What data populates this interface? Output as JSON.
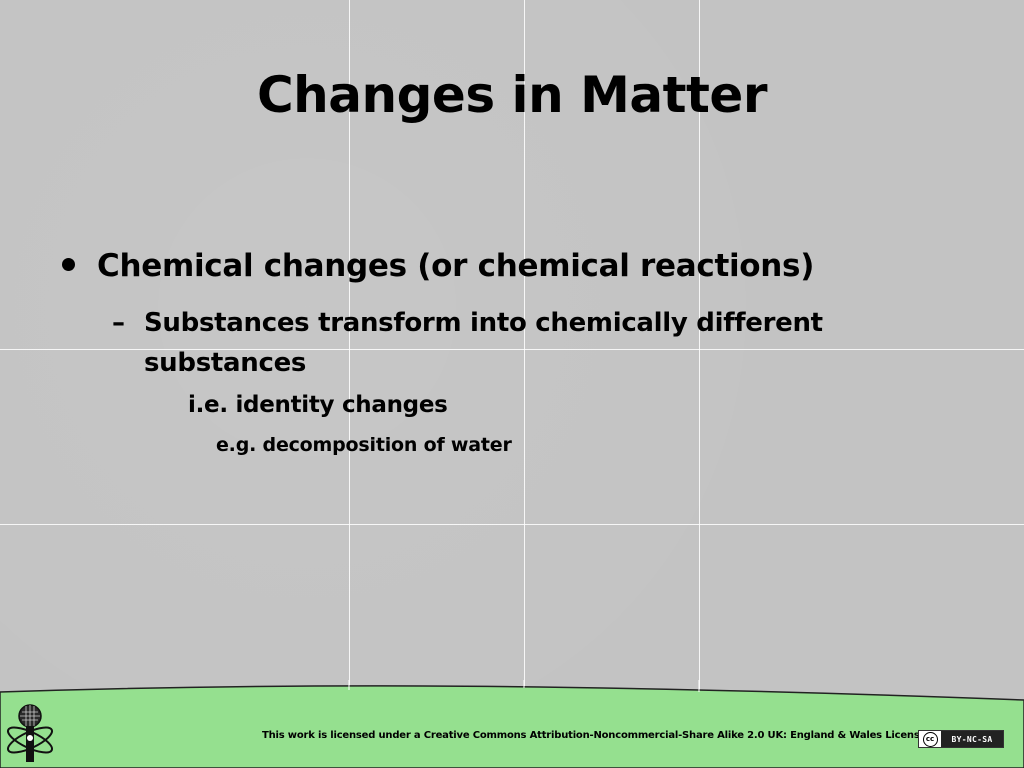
{
  "slide": {
    "title": "Changes in Matter",
    "bullet_level1": "Chemical changes (or chemical reactions)",
    "bullet_level2_marker": "–",
    "bullet_level2": "Substances transform into chemically different substances",
    "line_level3": "i.e. identity changes",
    "line_level4": "e.g. decomposition of water"
  },
  "footer": {
    "license_text": "This work is licensed under a Creative Commons Attribution-Noncommercial-Share Alike 2.0 UK: England & Wales License",
    "cc_badge_left": "cc",
    "cc_badge_right": "BY-NC-SA",
    "logo_icon": "atom-microphone-icon"
  },
  "colors": {
    "background": "#c3c3c3",
    "footer_green": "#95e08f",
    "text": "#000000"
  }
}
